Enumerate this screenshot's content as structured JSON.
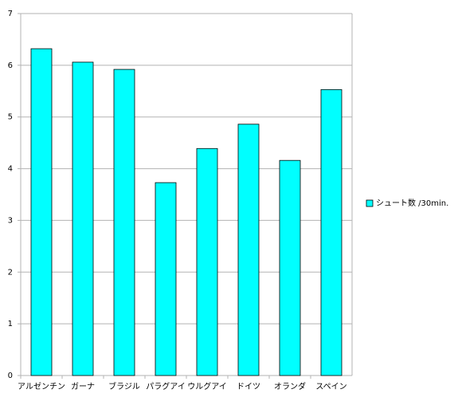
{
  "chart_data": {
    "type": "bar",
    "categories": [
      "アルゼンチン",
      "ガーナ",
      "ブラジル",
      "パラグアイ",
      "ウルグアイ",
      "ドイツ",
      "オランダ",
      "スペイン"
    ],
    "series": [
      {
        "name": "シュート数 /30min.",
        "color": "#00ffff",
        "values": [
          6.32,
          6.06,
          5.92,
          3.73,
          4.39,
          4.86,
          4.16,
          5.53
        ]
      }
    ],
    "ylim": [
      0,
      7
    ],
    "yticks": [
      0,
      1,
      2,
      3,
      4,
      5,
      6,
      7
    ],
    "grid": true,
    "legend": "right"
  }
}
